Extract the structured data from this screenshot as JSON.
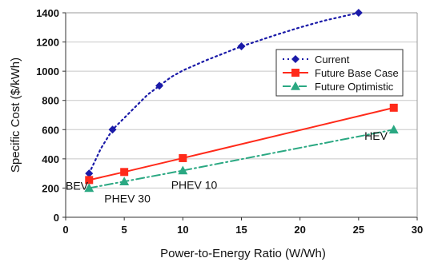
{
  "chart_data": {
    "type": "line",
    "title": "",
    "xlabel": "Power-to-Energy Ratio (W/Wh)",
    "ylabel": "Specific Cost ($/kWh)",
    "xlim": [
      0,
      30
    ],
    "ylim": [
      0,
      1400
    ],
    "xticks": [
      0,
      5,
      10,
      15,
      20,
      25,
      30
    ],
    "yticks": [
      0,
      200,
      400,
      600,
      800,
      1000,
      1200,
      1400
    ],
    "grid": "horizontal",
    "legend_position": "top-right",
    "series": [
      {
        "name": "Current",
        "color": "#1a1aa8",
        "line_style": "dotted",
        "marker": "diamond",
        "points": [
          [
            2,
            300
          ],
          [
            4,
            600
          ],
          [
            8,
            900
          ],
          [
            15,
            1170
          ],
          [
            25,
            1400
          ]
        ],
        "curve": [
          [
            2,
            300
          ],
          [
            3,
            470
          ],
          [
            4,
            600
          ],
          [
            5,
            680
          ],
          [
            6,
            760
          ],
          [
            7,
            840
          ],
          [
            8,
            900
          ],
          [
            9,
            960
          ],
          [
            10,
            1005
          ],
          [
            12,
            1075
          ],
          [
            15,
            1170
          ],
          [
            18,
            1250
          ],
          [
            20,
            1300
          ],
          [
            22,
            1345
          ],
          [
            25,
            1400
          ]
        ]
      },
      {
        "name": "Future Base Case",
        "color": "#ff2a1a",
        "line_style": "solid",
        "marker": "square",
        "points": [
          [
            2,
            255
          ],
          [
            5,
            310
          ],
          [
            10,
            405
          ],
          [
            28,
            750
          ]
        ],
        "curve": [
          [
            2,
            255
          ],
          [
            5,
            310
          ],
          [
            10,
            405
          ],
          [
            28,
            750
          ]
        ]
      },
      {
        "name": "Future Optimistic",
        "color": "#2aa882",
        "line_style": "dashdot",
        "marker": "triangle",
        "points": [
          [
            2,
            200
          ],
          [
            5,
            245
          ],
          [
            10,
            320
          ],
          [
            28,
            600
          ]
        ],
        "curve": [
          [
            2,
            200
          ],
          [
            5,
            245
          ],
          [
            10,
            320
          ],
          [
            28,
            600
          ]
        ]
      }
    ],
    "annotations": [
      {
        "text": "BEV",
        "x": 0,
        "y": 190
      },
      {
        "text": "PHEV 30",
        "x": 3.3,
        "y": 100
      },
      {
        "text": "PHEV 10",
        "x": 9,
        "y": 195
      },
      {
        "text": "HEV",
        "x": 25.5,
        "y": 530
      }
    ]
  }
}
